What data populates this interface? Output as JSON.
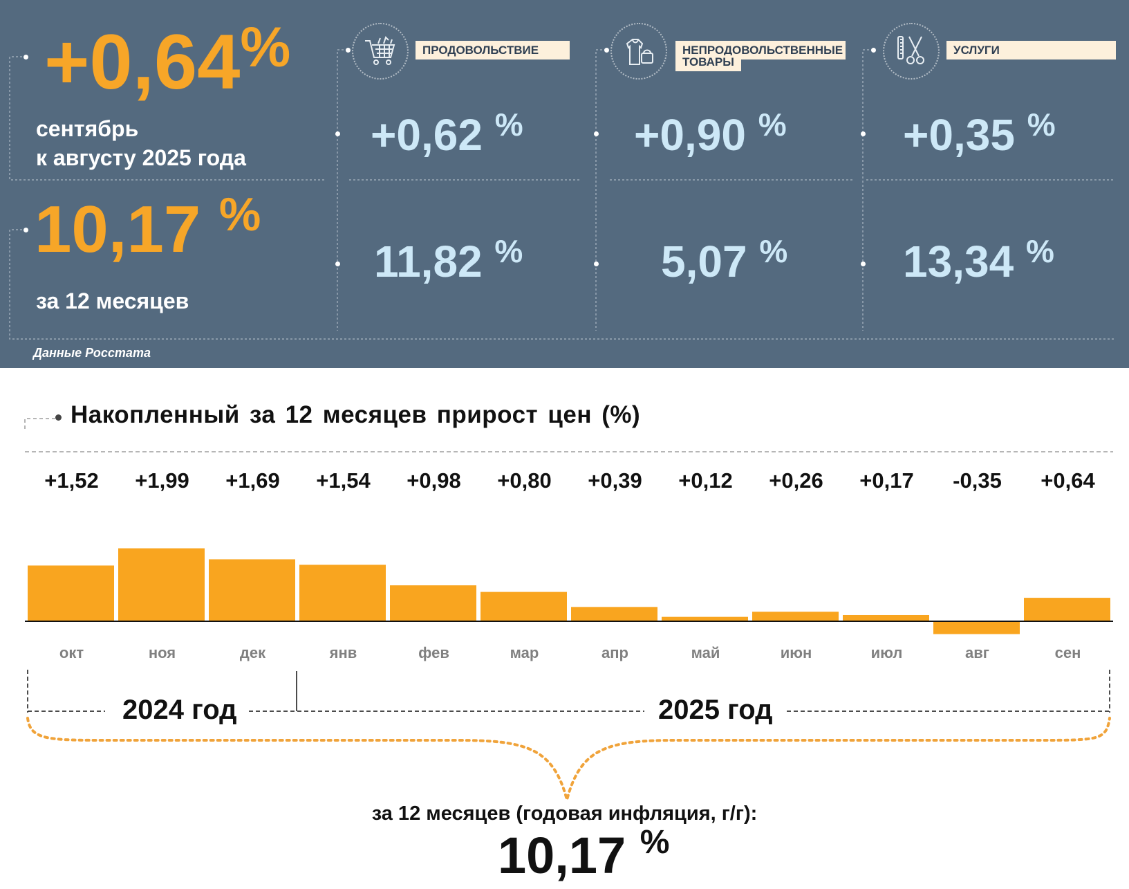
{
  "header": {
    "monthly_value": "+0,64",
    "monthly_unit": "%",
    "monthly_caption_line1": "сентябрь",
    "monthly_caption_line2": "к августу 2025 года",
    "annual_value": "10,17",
    "annual_unit": "%",
    "annual_caption": "за 12 месяцев",
    "source": "Данные Росстата"
  },
  "categories": [
    {
      "label": "ПРОДОВОЛЬСТВИЕ",
      "monthly": "+0,62",
      "annual": "11,82",
      "unit": "%",
      "icon": "shopping-cart-icon"
    },
    {
      "label_line1": "НЕПРОДОВОЛЬСТВЕННЫЕ",
      "label_line2": "ТОВАРЫ",
      "monthly": "+0,90",
      "annual": "5,07",
      "unit": "%",
      "icon": "clothing-bag-icon"
    },
    {
      "label": "УСЛУГИ",
      "monthly": "+0,35",
      "annual": "13,34",
      "unit": "%",
      "icon": "scissors-comb-icon"
    }
  ],
  "chart_title": "Накопленный за 12 месяцев прирост цен (%)",
  "chart_data": {
    "type": "bar",
    "title": "Накопленный за 12 месяцев прирост цен (%)",
    "categories": [
      "окт",
      "ноя",
      "дек",
      "янв",
      "фев",
      "мар",
      "апр",
      "май",
      "июн",
      "июл",
      "авг",
      "сен"
    ],
    "values": [
      1.52,
      1.99,
      1.69,
      1.54,
      0.98,
      0.8,
      0.39,
      0.12,
      0.26,
      0.17,
      -0.35,
      0.64
    ],
    "value_labels": [
      "+1,52",
      "+1,99",
      "+1,69",
      "+1,54",
      "+0,98",
      "+0,80",
      "+0,39",
      "+0,12",
      "+0,26",
      "+0,17",
      "-0,35",
      "+0,64"
    ],
    "bar_color": "#f9a51f",
    "xlabel": "",
    "ylabel": ""
  },
  "years": {
    "y2024": "2024 год",
    "y2025": "2025 год"
  },
  "footer": {
    "caption": "за 12 месяцев (годовая инфляция, г/г):",
    "value": "10,17",
    "unit": "%"
  }
}
